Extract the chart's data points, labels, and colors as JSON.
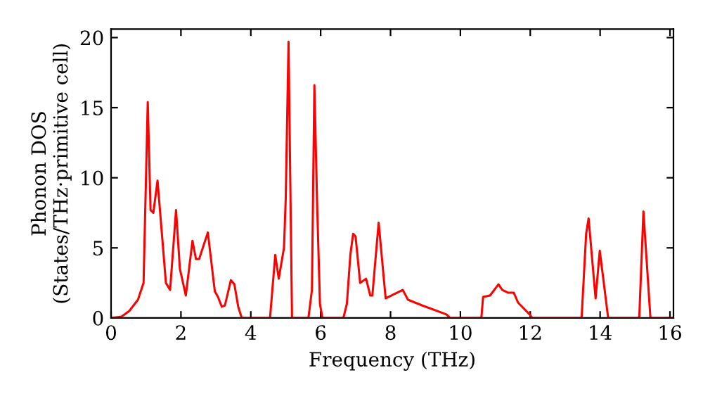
{
  "chart_data": {
    "type": "line",
    "xlabel": "Frequency (THz)",
    "ylabel": "Phonon DOS\n(States/THz·primitive cell)",
    "x": [
      0,
      0.3,
      0.52,
      0.77,
      0.93,
      1.05,
      1.13,
      1.21,
      1.33,
      1.57,
      1.69,
      1.86,
      1.97,
      2.14,
      2.33,
      2.43,
      2.52,
      2.77,
      2.97,
      3.06,
      3.17,
      3.26,
      3.43,
      3.53,
      3.64,
      3.74,
      4.55,
      4.7,
      4.8,
      4.95,
      5.0,
      5.08,
      5.18,
      5.65,
      5.75,
      5.82,
      5.9,
      5.98,
      6.05,
      6.65,
      6.75,
      6.85,
      6.93,
      7.0,
      7.13,
      7.3,
      7.42,
      7.48,
      7.66,
      7.86,
      8.1,
      8.35,
      8.5,
      8.9,
      9.6,
      9.7,
      10.6,
      10.65,
      10.85,
      11.09,
      11.2,
      11.37,
      11.53,
      11.65,
      12.0,
      12.05,
      13.47,
      13.6,
      13.67,
      13.87,
      13.99,
      14.23,
      15.12,
      15.24,
      15.44,
      16.1
    ],
    "series": [
      {
        "color": "#ff0000",
        "values": [
          0,
          0.1,
          0.5,
          1.3,
          2.5,
          15.4,
          7.7,
          7.5,
          9.8,
          2.5,
          2.0,
          7.7,
          3.5,
          1.6,
          5.5,
          4.2,
          4.2,
          6.1,
          1.9,
          1.5,
          0.8,
          0.9,
          2.7,
          2.4,
          0.8,
          0,
          0,
          4.5,
          2.8,
          5,
          8.5,
          19.7,
          0,
          0,
          2,
          16.6,
          8,
          1,
          0,
          0,
          1,
          4.5,
          6.0,
          5.8,
          2.5,
          2.8,
          1.6,
          1.6,
          6.8,
          1.4,
          1.7,
          2.0,
          1.3,
          0.9,
          0.25,
          0,
          0,
          1.5,
          1.6,
          2.4,
          2.0,
          1.8,
          1.8,
          1.1,
          0.2,
          0,
          0,
          6.0,
          7.1,
          1.4,
          4.8,
          0,
          0,
          7.6,
          0,
          0
        ]
      }
    ],
    "xlim": [
      0,
      16.1
    ],
    "ylim": [
      0,
      20.6
    ],
    "xticks": [
      0,
      2,
      4,
      6,
      8,
      10,
      12,
      14,
      16
    ],
    "yticks": [
      0,
      5,
      10,
      15,
      20
    ],
    "grid": false,
    "marker": "none",
    "line_style": "solid"
  }
}
